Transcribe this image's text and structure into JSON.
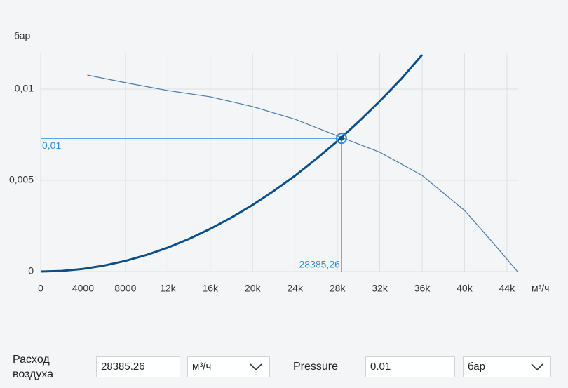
{
  "chart_data": {
    "type": "line",
    "ylabel": "бар",
    "xlabel": "м³/ч",
    "xlim": [
      0,
      45000
    ],
    "ylim": [
      0,
      0.012
    ],
    "xticks": [
      0,
      4000,
      8000,
      {
        "value": 12000,
        "label": "12k"
      },
      {
        "value": 16000,
        "label": "16k"
      },
      {
        "value": 20000,
        "label": "20k"
      },
      {
        "value": 24000,
        "label": "24k"
      },
      {
        "value": 28000,
        "label": "28k"
      },
      {
        "value": 32000,
        "label": "32k"
      },
      {
        "value": 36000,
        "label": "36k"
      },
      {
        "value": 40000,
        "label": "40k"
      },
      {
        "value": 44000,
        "label": "44k"
      }
    ],
    "yticks": [
      0,
      {
        "value": 0.005,
        "label": "0,005"
      },
      {
        "value": 0.01,
        "label": "0,01"
      }
    ],
    "grid": true,
    "series": [
      {
        "color": "#0b4f8a",
        "width": 3,
        "x": [
          0,
          2000,
          4000,
          6000,
          8000,
          10000,
          12000,
          14000,
          16000,
          18000,
          20000,
          22000,
          24000,
          26000,
          28000,
          30000,
          32000,
          34000,
          36000
        ],
        "values": [
          0,
          3.6e-05,
          0.000146,
          0.000328,
          0.000584,
          0.000912,
          0.00131,
          0.00179,
          0.00234,
          0.00296,
          0.00365,
          0.00442,
          0.00525,
          0.00617,
          0.00715,
          0.00821,
          0.00934,
          0.01054,
          0.01188
        ]
      },
      {
        "color": "#4a7aa8",
        "width": 1.2,
        "x": [
          4400,
          8000,
          12000,
          16000,
          20000,
          24000,
          28385,
          32000,
          36000,
          40000,
          42500,
          45000
        ],
        "values": [
          0.01077,
          0.01035,
          0.00992,
          0.00958,
          0.00904,
          0.00835,
          0.00735,
          0.00654,
          0.00527,
          0.00335,
          0.0017,
          0
        ]
      }
    ],
    "operating_point": {
      "x": 28385.26,
      "y": 0.0073,
      "x_label": "28385,26",
      "y_label": "0,01",
      "color": "#2a8fd6"
    }
  },
  "form": {
    "flow_label": "Расход воздуха",
    "flow_value": "28385.26",
    "flow_unit": "м³/ч",
    "pressure_label": "Pressure",
    "pressure_value": "0.01",
    "pressure_unit": "бар"
  }
}
